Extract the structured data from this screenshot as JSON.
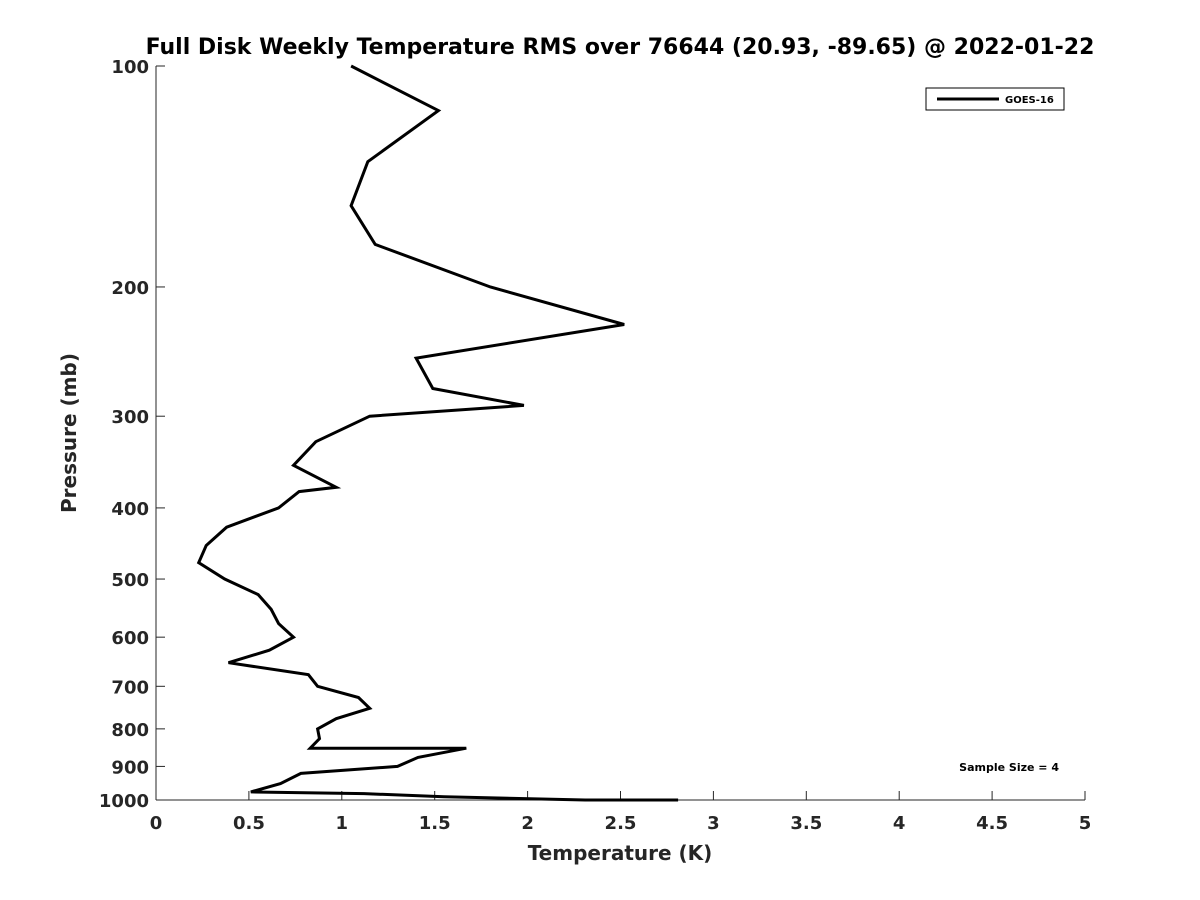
{
  "chart_data": {
    "type": "line",
    "title": "Full Disk Weekly Temperature RMS over 76644 (20.93, -89.65) @ 2022-01-22",
    "xlabel": "Temperature (K)",
    "ylabel": "Pressure (mb)",
    "xlim": [
      0,
      5
    ],
    "ylim": [
      100,
      1000
    ],
    "y_scale": "log",
    "y_reversed": true,
    "x_ticks": [
      "0",
      "0.5",
      "1",
      "1.5",
      "2",
      "2.5",
      "3",
      "3.5",
      "4",
      "4.5",
      "5"
    ],
    "y_ticks": [
      "100",
      "200",
      "300",
      "400",
      "500",
      "600",
      "700",
      "800",
      "900",
      "1000"
    ],
    "grid": false,
    "legend": {
      "position": "top-right",
      "entries": [
        "GOES-16"
      ]
    },
    "annotation": "Sample Size = 4",
    "series": [
      {
        "name": "GOES-16",
        "color": "#000000",
        "temperature": [
          1.05,
          1.52,
          1.14,
          1.05,
          1.18,
          1.8,
          2.52,
          1.4,
          1.49,
          1.98,
          1.15,
          0.86,
          0.74,
          0.97,
          0.77,
          0.66,
          0.38,
          0.27,
          0.23,
          0.37,
          0.55,
          0.62,
          0.66,
          0.74,
          0.61,
          0.39,
          0.82,
          0.87,
          1.09,
          1.15,
          0.97,
          0.87,
          0.88,
          0.83,
          1.67,
          1.41,
          1.3,
          0.78,
          0.67,
          0.51,
          1.12,
          1.55,
          2.31,
          2.81
        ],
        "pressure": [
          100,
          115,
          135,
          155,
          175,
          200,
          225,
          250,
          275,
          290,
          300,
          325,
          350,
          375,
          380,
          400,
          425,
          450,
          475,
          500,
          525,
          550,
          575,
          600,
          625,
          650,
          675,
          700,
          725,
          750,
          775,
          800,
          825,
          850,
          850,
          875,
          900,
          920,
          950,
          975,
          980,
          990,
          1000,
          1000
        ]
      }
    ]
  }
}
